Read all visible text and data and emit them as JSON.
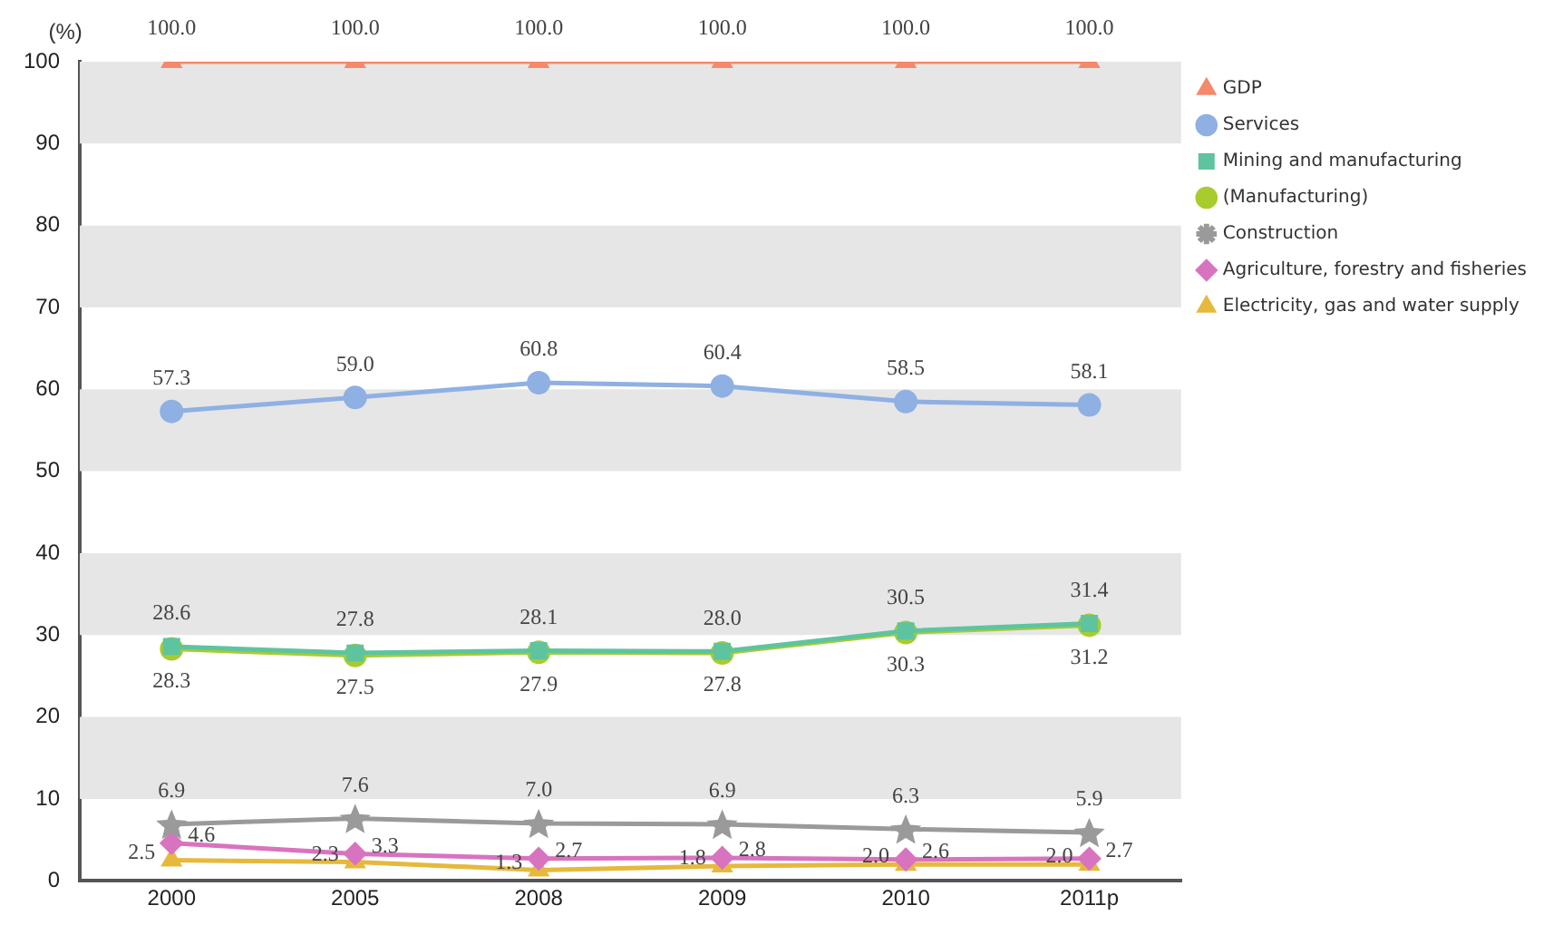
{
  "chart_data": {
    "type": "line",
    "ylabel": "(%)",
    "categories": [
      "2000",
      "2005",
      "2008",
      "2009",
      "2010",
      "2011p"
    ],
    "series": [
      {
        "name": "GDP",
        "color": "#f4896b",
        "marker": "triangle",
        "values": [
          100.0,
          100.0,
          100.0,
          100.0,
          100.0,
          100.0
        ],
        "value_labels": [
          "100.0",
          "100.0",
          "100.0",
          "100.0",
          "100.0",
          "100.0"
        ]
      },
      {
        "name": "Services",
        "color": "#8fb0e3",
        "marker": "circle",
        "values": [
          57.3,
          59.0,
          60.8,
          60.4,
          58.5,
          58.1
        ],
        "value_labels": [
          "57.3",
          "59.0",
          "60.8",
          "60.4",
          "58.5",
          "58.1"
        ]
      },
      {
        "name": "Mining and manufacturing",
        "color": "#5ec4a0",
        "marker": "square",
        "values": [
          28.6,
          27.8,
          28.1,
          28.0,
          30.5,
          31.4
        ],
        "value_labels": [
          "28.6",
          "27.8",
          "28.1",
          "28.0",
          "30.5",
          "31.4"
        ]
      },
      {
        "name": "(Manufacturing)",
        "color": "#a8cc2e",
        "marker": "circle",
        "values": [
          28.3,
          27.5,
          27.9,
          27.8,
          30.3,
          31.2
        ],
        "value_labels": [
          "28.3",
          "27.5",
          "27.9",
          "27.8",
          "30.3",
          "31.2"
        ]
      },
      {
        "name": "Construction",
        "color": "#9a9a9a",
        "marker": "star",
        "values": [
          6.9,
          7.6,
          7.0,
          6.9,
          6.3,
          5.9
        ],
        "value_labels": [
          "6.9",
          "7.6",
          "7.0",
          "6.9",
          "6.3",
          "5.9"
        ]
      },
      {
        "name": "Agriculture, forestry and fisheries",
        "color": "#d873c0",
        "marker": "diamond",
        "values": [
          4.6,
          3.3,
          2.7,
          2.8,
          2.6,
          2.7
        ],
        "value_labels": [
          "4.6",
          "3.3",
          "2.7",
          "2.8",
          "2.6",
          "2.7"
        ]
      },
      {
        "name": "Electricity, gas and water supply",
        "color": "#e6b93c",
        "marker": "triangle",
        "values": [
          2.5,
          2.3,
          1.3,
          1.8,
          2.0,
          2.0
        ],
        "value_labels": [
          "2.5",
          "2.3",
          "1.3",
          "1.8",
          "2.0",
          "2.0"
        ]
      }
    ],
    "ylim": [
      0,
      100
    ],
    "yticks": [
      0,
      10,
      20,
      30,
      40,
      50,
      60,
      70,
      80,
      90,
      100
    ],
    "bands": [
      {
        "axis": "y",
        "from": 10,
        "to": 20,
        "color": "#e6e6e6"
      },
      {
        "axis": "y",
        "from": 30,
        "to": 40,
        "color": "#e6e6e6"
      },
      {
        "axis": "y",
        "from": 50,
        "to": 60,
        "color": "#e6e6e6"
      },
      {
        "axis": "y",
        "from": 70,
        "to": 80,
        "color": "#e6e6e6"
      },
      {
        "axis": "y",
        "from": 90,
        "to": 100,
        "color": "#e6e6e6"
      }
    ],
    "legend": "right"
  }
}
